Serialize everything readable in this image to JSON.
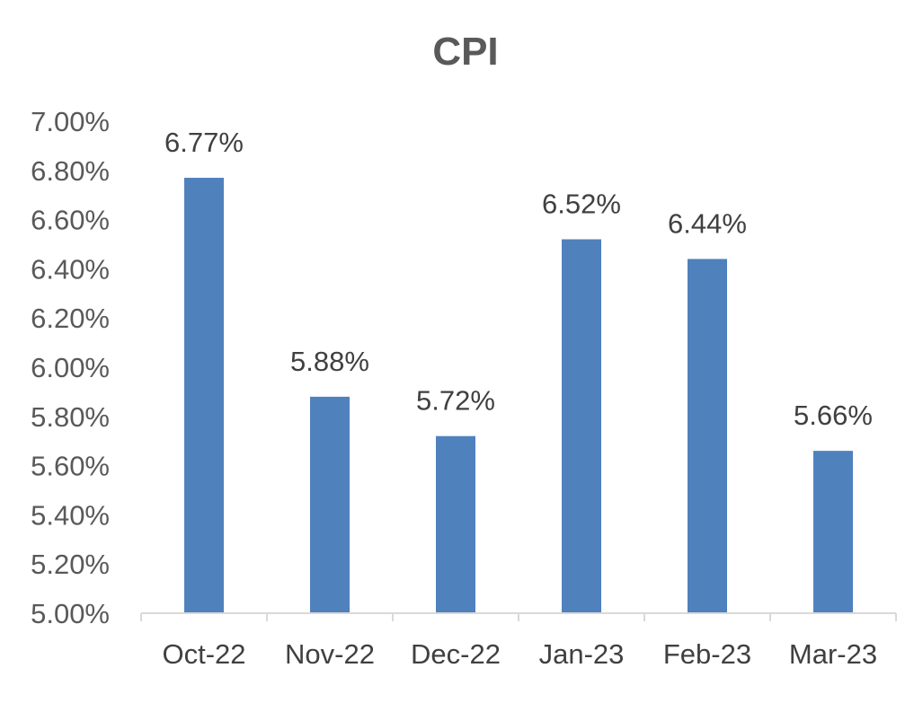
{
  "chart_data": {
    "type": "bar",
    "title": "CPI",
    "xlabel": "",
    "ylabel": "",
    "categories": [
      "Oct-22",
      "Nov-22",
      "Dec-22",
      "Jan-23",
      "Feb-23",
      "Mar-23"
    ],
    "values": [
      6.77,
      5.88,
      5.72,
      6.52,
      6.44,
      5.66
    ],
    "data_labels": [
      "6.77%",
      "5.88%",
      "5.72%",
      "6.52%",
      "6.44%",
      "5.66%"
    ],
    "ylim": [
      5.0,
      7.0
    ],
    "yticks": [
      5.0,
      5.2,
      5.4,
      5.6,
      5.8,
      6.0,
      6.2,
      6.4,
      6.6,
      6.8,
      7.0
    ],
    "ytick_labels": [
      "5.00%",
      "5.20%",
      "5.40%",
      "5.60%",
      "5.80%",
      "6.00%",
      "6.20%",
      "6.40%",
      "6.60%",
      "6.80%",
      "7.00%"
    ],
    "grid": false,
    "legend": "none",
    "bar_color": "#4F81BD",
    "axis_color": "#D9D9D9"
  }
}
